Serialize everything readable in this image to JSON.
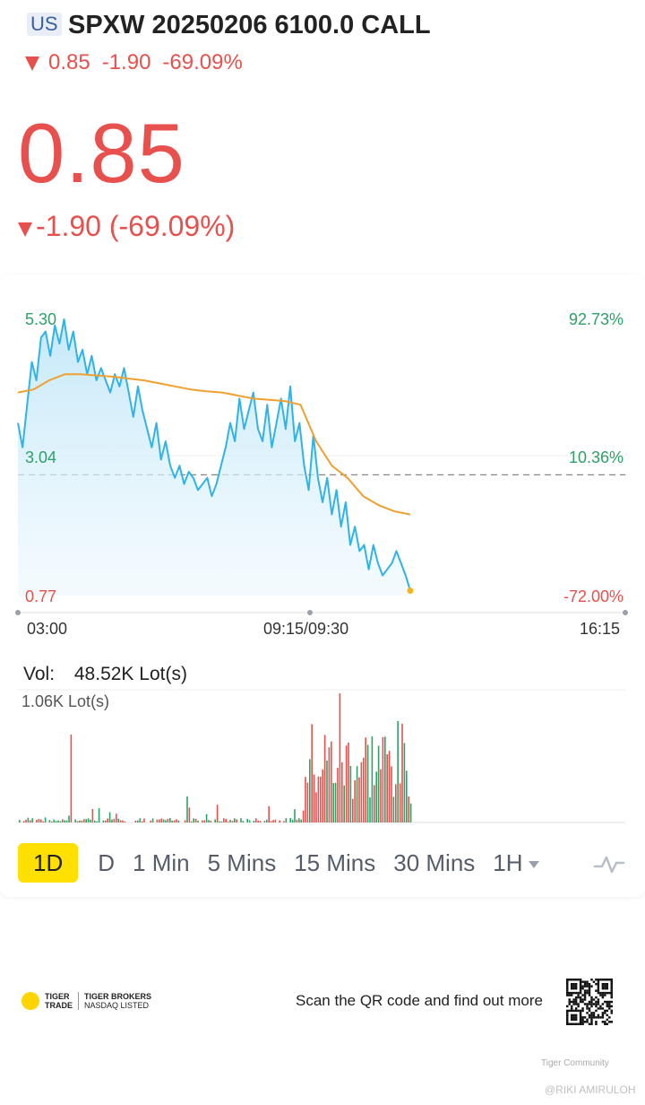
{
  "header": {
    "market": "US",
    "symbol": "SPXW 20250206 6100.0 CALL",
    "summary": {
      "price": "0.85",
      "change": "-1.90",
      "change_pct": "-69.09%"
    },
    "price": "0.85",
    "change_line": "-1.90 (-69.09%)"
  },
  "colors": {
    "down": "#e8504d",
    "up": "#2ea167",
    "price_line": "#2fb3e8",
    "avg_line": "#f0a030",
    "active_tab": "#ffe000"
  },
  "chart_data": {
    "type": "line",
    "price_axis": {
      "max": "5.30",
      "mid": "3.04",
      "min": "0.77"
    },
    "pct_axis": {
      "max": "92.73%",
      "mid": "10.36%",
      "min": "-72.00%"
    },
    "time_labels": [
      "03:00",
      "09:15/09:30",
      "16:15"
    ],
    "ylim": [
      0.77,
      5.3
    ],
    "prev_close": 2.75,
    "price_series": [
      3.6,
      3.2,
      3.9,
      4.6,
      4.3,
      5.0,
      5.1,
      4.7,
      5.2,
      4.9,
      5.3,
      4.8,
      5.1,
      4.6,
      4.8,
      4.4,
      4.7,
      4.3,
      4.5,
      4.3,
      4.1,
      4.4,
      4.2,
      4.5,
      4.1,
      3.7,
      4.2,
      3.8,
      3.5,
      3.2,
      3.6,
      3.0,
      3.3,
      2.9,
      2.7,
      2.9,
      2.6,
      2.8,
      2.7,
      2.5,
      2.6,
      2.7,
      2.4,
      2.6,
      2.9,
      3.2,
      3.6,
      3.3,
      4.0,
      3.5,
      3.8,
      4.1,
      3.5,
      3.3,
      3.9,
      3.2,
      3.6,
      4.0,
      3.5,
      4.2,
      3.3,
      3.6,
      2.9,
      2.5,
      3.4,
      2.7,
      2.3,
      2.7,
      2.1,
      2.5,
      1.9,
      2.3,
      1.6,
      1.9,
      1.5,
      1.6,
      1.2,
      1.6,
      1.3,
      1.1,
      1.2,
      1.3,
      1.5,
      1.3,
      1.1,
      0.85
    ],
    "avg_series": [
      4.1,
      4.15,
      4.3,
      4.4,
      4.4,
      4.38,
      4.36,
      4.33,
      4.3,
      4.25,
      4.2,
      4.15,
      4.12,
      4.1,
      4.05,
      4.0,
      3.98,
      3.96,
      3.9,
      3.3,
      2.9,
      2.7,
      2.4,
      2.25,
      2.15,
      2.1
    ],
    "volume": {
      "total_label": "Vol:",
      "total": "48.52K Lot(s)",
      "max_label": "1.06K Lot(s)"
    }
  },
  "tabs": [
    {
      "label": "1D",
      "active": true
    },
    {
      "label": "D"
    },
    {
      "label": "1 Min"
    },
    {
      "label": "5 Mins"
    },
    {
      "label": "15 Mins"
    },
    {
      "label": "30 Mins"
    },
    {
      "label": "1H"
    }
  ],
  "footer": {
    "brand_line1": "TIGER",
    "brand_line2": "TRADE",
    "partner_line1": "TIGER BROKERS",
    "partner_line2": "NASDAQ LISTED",
    "scan_text": "Scan the QR code and find out more",
    "watermark1": "Tiger Community",
    "watermark2": "@RIKI AMIRULOH"
  },
  "icons": {
    "indicator": "pulse-line-icon",
    "qr": "qr-code-icon"
  }
}
